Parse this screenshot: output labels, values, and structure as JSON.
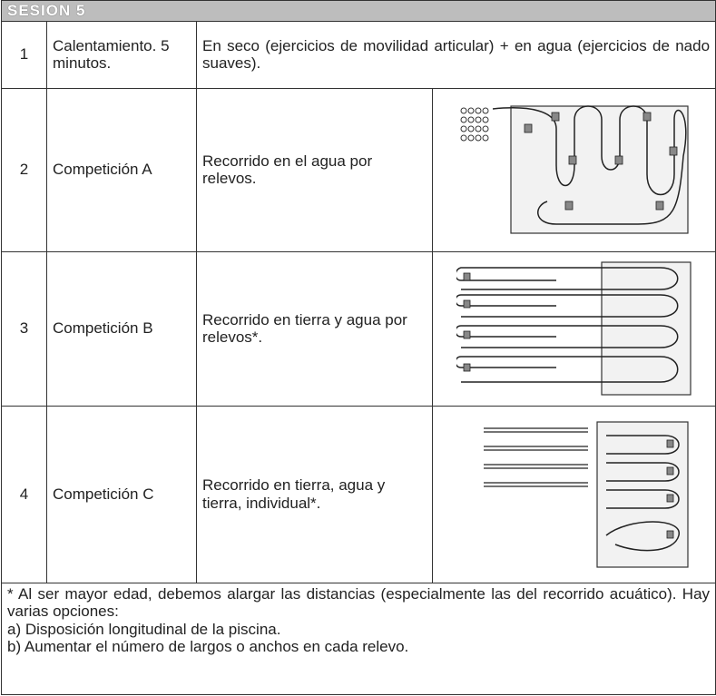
{
  "header": {
    "title": "SESION 5"
  },
  "rows": [
    {
      "number": "1",
      "name": "Calentamiento. 5 minutos.",
      "description": "En seco (ejercicios de movilidad articular) + en agua (ejercicios de nado suaves)."
    },
    {
      "number": "2",
      "name": "Competición A",
      "description": "Recorrido en el agua por relevos."
    },
    {
      "number": "3",
      "name": "Competición B",
      "description": "Recorrido en tierra y agua por relevos*."
    },
    {
      "number": "4",
      "name": "Competición C",
      "description": "Recorrido en tierra, agua y tierra, individual*."
    }
  ],
  "footer": {
    "note": "* Al ser mayor edad, debemos alargar las distancias (especialmente las del recorrido acuático). Hay varias opciones:",
    "options": [
      "a) Disposición longitudinal de la piscina.",
      "b) Aumentar el número de largos o anchos en cada relevo."
    ]
  }
}
